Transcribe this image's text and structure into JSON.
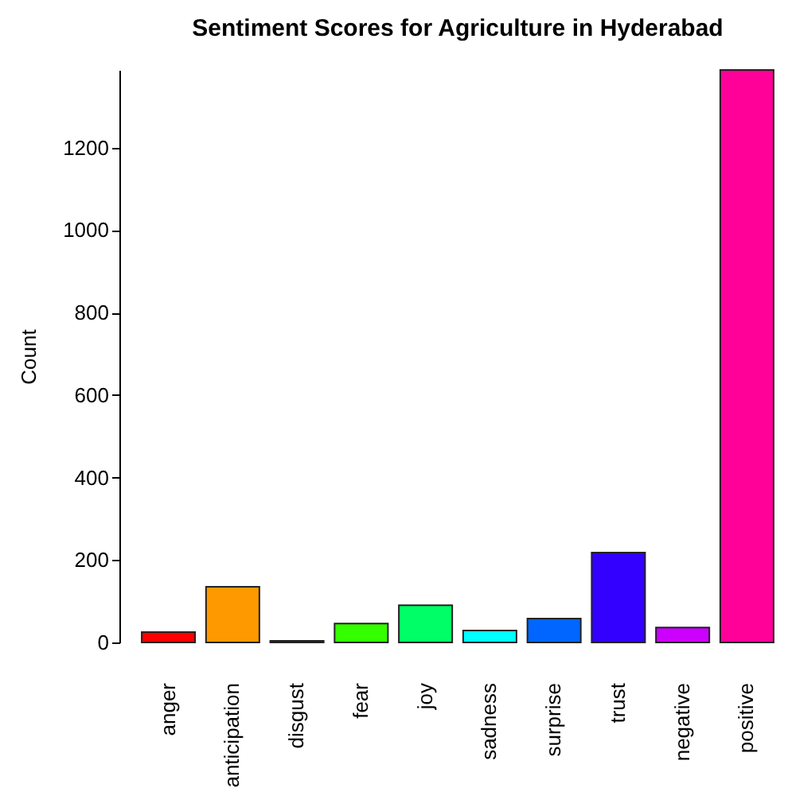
{
  "chart_data": {
    "type": "bar",
    "title": "Sentiment Scores for Agriculture in Hyderabad",
    "ylabel": "Count",
    "categories": [
      "anger",
      "anticipation",
      "disgust",
      "fear",
      "joy",
      "sadness",
      "surprise",
      "trust",
      "negative",
      "positive"
    ],
    "values": [
      25,
      135,
      4,
      46,
      90,
      29,
      58,
      218,
      36,
      1388
    ],
    "colors": [
      "#ff0000",
      "#ff9900",
      "#ccff00",
      "#33ff00",
      "#00ff66",
      "#00ffff",
      "#0066ff",
      "#3300ff",
      "#cc00ff",
      "#ff0099"
    ],
    "ylim": [
      0,
      1388
    ],
    "yticks": [
      0,
      200,
      400,
      600,
      800,
      1000,
      1200
    ],
    "grid": false
  }
}
